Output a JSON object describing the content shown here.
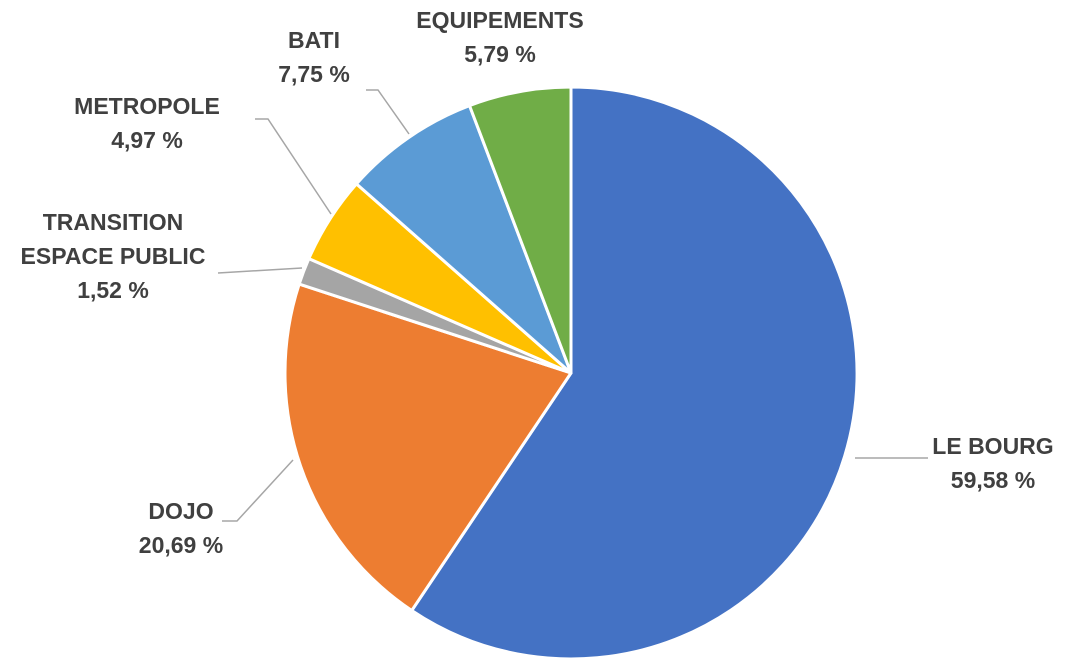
{
  "chart_data": {
    "type": "pie",
    "title": "",
    "start_angle_deg": 0,
    "direction": "clockwise",
    "legend": "none",
    "slices": [
      {
        "label": [
          "LE BOURG"
        ],
        "value": 59.58,
        "value_label": "59,58 %",
        "color": "#4472C4"
      },
      {
        "label": [
          "DOJO"
        ],
        "value": 20.69,
        "value_label": "20,69 %",
        "color": "#ED7D31"
      },
      {
        "label": [
          "TRANSITION",
          "ESPACE PUBLIC"
        ],
        "value": 1.52,
        "value_label": "1,52 %",
        "color": "#A5A5A5"
      },
      {
        "label": [
          "METROPOLE"
        ],
        "value": 4.97,
        "value_label": "4,97 %",
        "color": "#FFC000"
      },
      {
        "label": [
          "BATI"
        ],
        "value": 7.75,
        "value_label": "7,75 %",
        "color": "#5B9BD5"
      },
      {
        "label": [
          "EQUIPEMENTS"
        ],
        "value": 5.79,
        "value_label": "5,79 %",
        "color": "#70AD47"
      }
    ]
  }
}
